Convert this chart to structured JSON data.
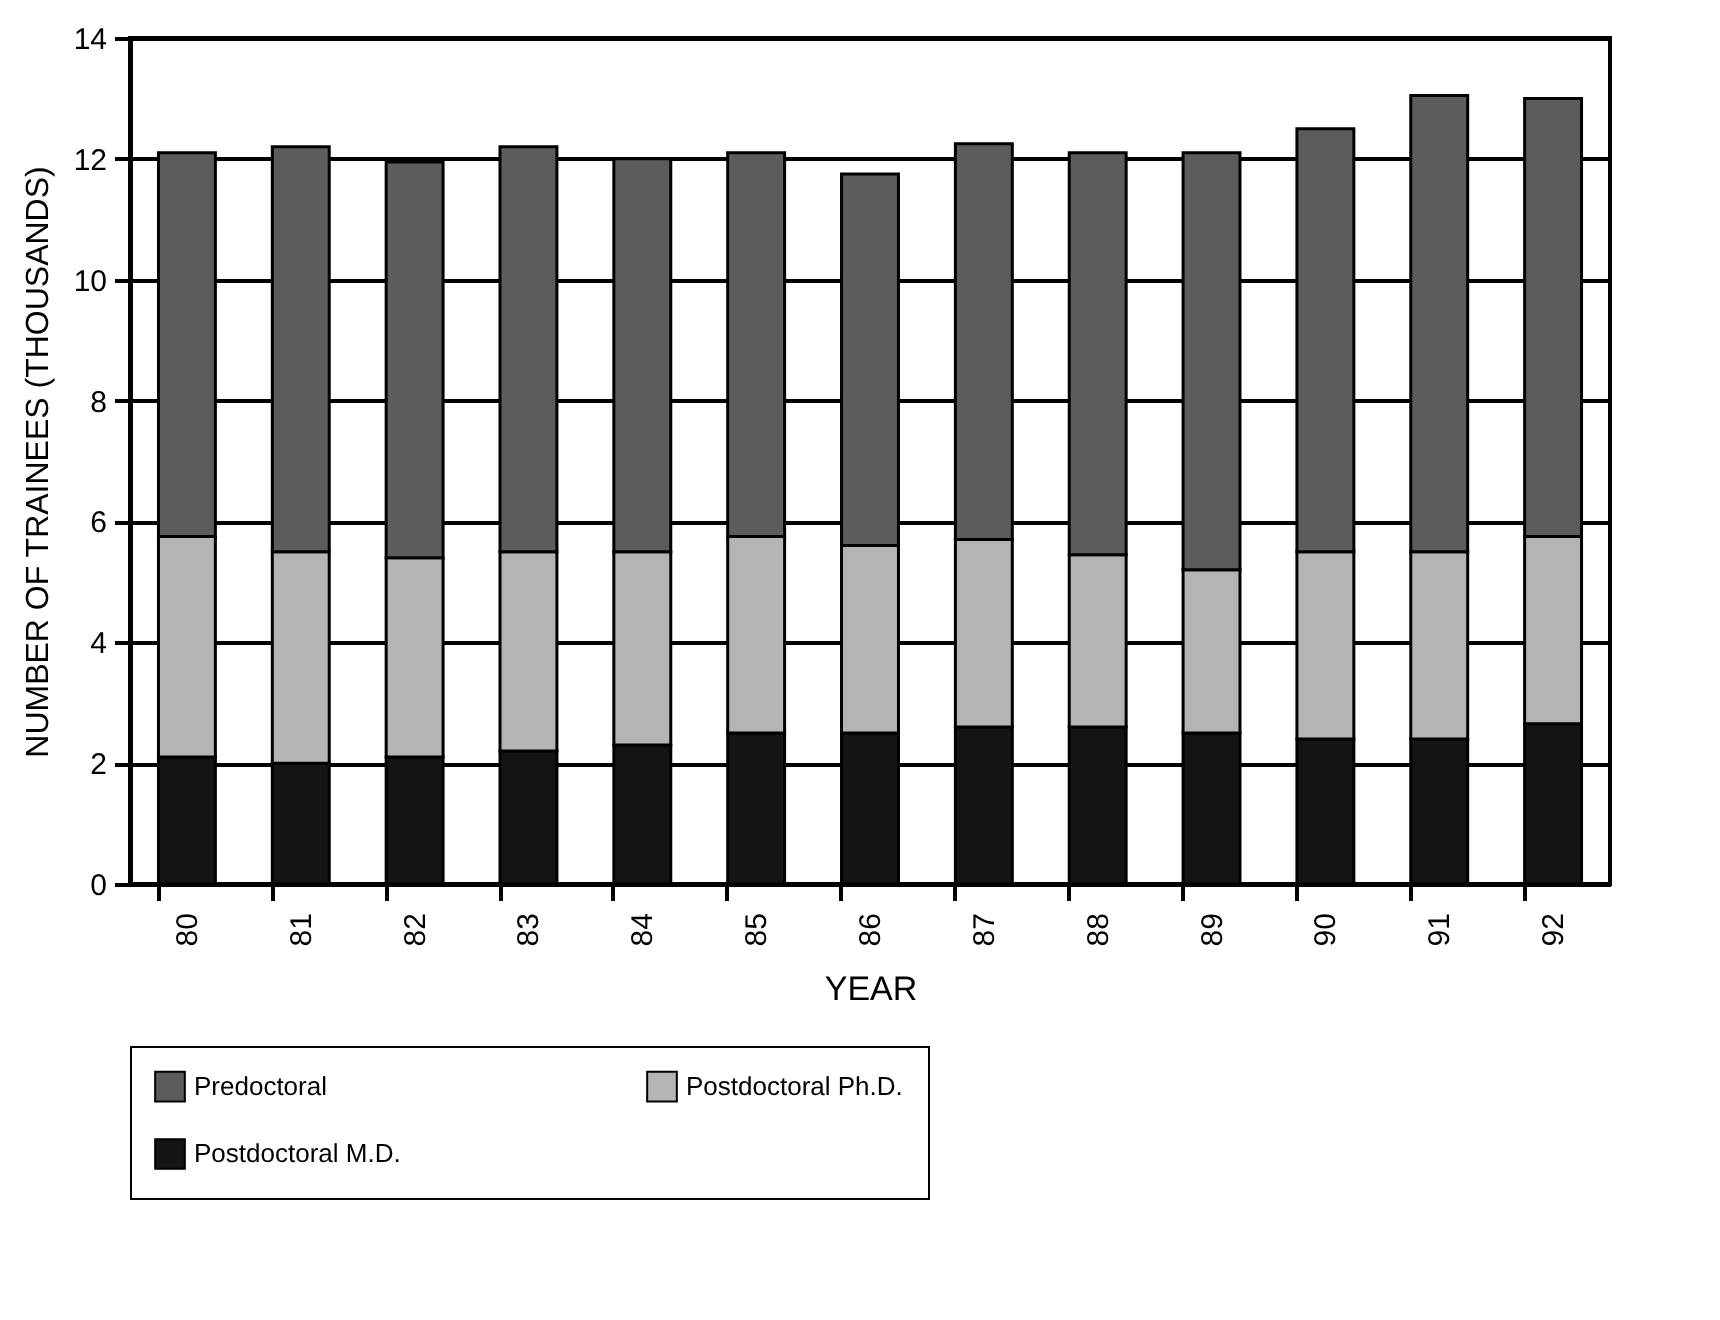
{
  "chart_data": {
    "type": "bar",
    "stacked": true,
    "xlabel": "YEAR",
    "ylabel": "NUMBER OF TRAINEES (THOUSANDS)",
    "categories": [
      "80",
      "81",
      "82",
      "83",
      "84",
      "85",
      "86",
      "87",
      "88",
      "89",
      "90",
      "91",
      "92"
    ],
    "series": [
      {
        "name": "Postdoctoral M.D.",
        "color": "#141414",
        "values": [
          2.1,
          2.0,
          2.1,
          2.2,
          2.3,
          2.5,
          2.5,
          2.6,
          2.6,
          2.5,
          2.4,
          2.4,
          2.65
        ]
      },
      {
        "name": "Postdoctoral Ph.D.",
        "color": "#b4b4b4",
        "values": [
          3.65,
          3.5,
          3.3,
          3.3,
          3.2,
          3.25,
          3.1,
          3.1,
          2.85,
          2.7,
          3.1,
          3.1,
          3.1
        ]
      },
      {
        "name": "Predoctoral",
        "color": "#5c5c5c",
        "values": [
          6.35,
          6.7,
          6.55,
          6.7,
          6.5,
          6.35,
          6.15,
          6.55,
          6.65,
          6.9,
          7.0,
          7.55,
          7.25
        ]
      }
    ],
    "ylim": [
      0,
      14
    ],
    "yticks": [
      0,
      2,
      4,
      6,
      8,
      10,
      12,
      14
    ],
    "grid": "y",
    "legend": "bottom"
  }
}
